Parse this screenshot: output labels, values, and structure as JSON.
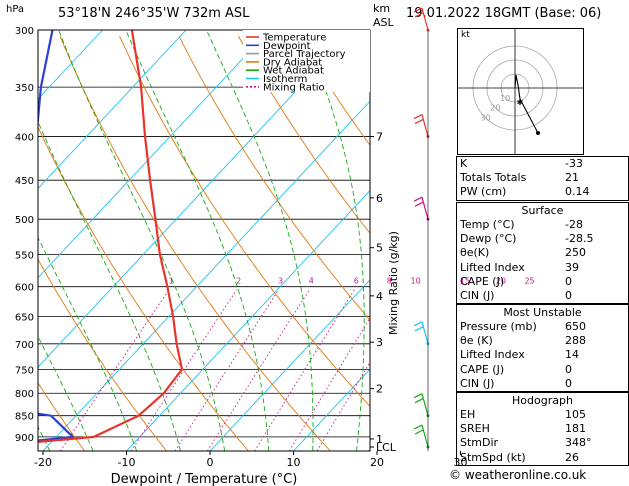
{
  "header": {
    "station": "53°18'N  246°35'W  732m  ASL",
    "datetime": "19.01.2022  18GMT  (Base: 06)",
    "hpa_label": "hPa",
    "km_label": "km",
    "asl_label": "ASL"
  },
  "colors": {
    "temperature": "#e8342c",
    "dewpoint": "#2d3fd8",
    "parcel": "#9a9a9a",
    "dry_adiabat": "#e07a10",
    "wet_adiabat": "#19a819",
    "isotherm": "#1ec4ee",
    "mixing_ratio": "#c71585"
  },
  "chart_data": {
    "type": "line",
    "title": "",
    "xlabel": "Dewpoint / Temperature (°C)",
    "ylabel": "hPa",
    "right_axis_label": "Mixing Ratio (g/kg)",
    "xlim": [
      -40,
      35
    ],
    "ylim": [
      925,
      300
    ],
    "x_ticks": [
      -40,
      -30,
      -20,
      -10,
      0,
      10,
      20,
      30
    ],
    "pressure_ticks": [
      300,
      350,
      400,
      450,
      500,
      550,
      600,
      650,
      700,
      750,
      800,
      850,
      900
    ],
    "km_ticks": [
      {
        "label": "7",
        "p": 400
      },
      {
        "label": "6",
        "p": 472
      },
      {
        "label": "5",
        "p": 540
      },
      {
        "label": "4",
        "p": 615
      },
      {
        "label": "3",
        "p": 697
      },
      {
        "label": "2",
        "p": 790
      },
      {
        "label": "1",
        "p": 905
      },
      {
        "label": "LCL",
        "p": 925
      }
    ],
    "mixing_ratio_labels": [
      "1",
      "2",
      "3",
      "4",
      "6",
      "8",
      "10",
      "15",
      "20",
      "25"
    ],
    "legend": [
      "Temperature",
      "Dewpoint",
      "Parcel Trajectory",
      "Dry Adiabat",
      "Wet Adiabat",
      "Isotherm",
      "Mixing Ratio"
    ],
    "legend_position": "top",
    "series": [
      {
        "name": "Temperature",
        "points": [
          {
            "p": 925,
            "t": -28
          },
          {
            "p": 900,
            "t": -15.5
          },
          {
            "p": 850,
            "t": -12.5
          },
          {
            "p": 800,
            "t": -12
          },
          {
            "p": 750,
            "t": -12.5
          },
          {
            "p": 700,
            "t": -16
          },
          {
            "p": 650,
            "t": -19.5
          },
          {
            "p": 600,
            "t": -23.5
          },
          {
            "p": 550,
            "t": -28
          },
          {
            "p": 500,
            "t": -32.5
          },
          {
            "p": 450,
            "t": -37.5
          },
          {
            "p": 400,
            "t": -43
          },
          {
            "p": 350,
            "t": -49
          },
          {
            "p": 300,
            "t": -56.5
          }
        ]
      },
      {
        "name": "Dewpoint",
        "points": [
          {
            "p": 925,
            "t": -28.5
          },
          {
            "p": 900,
            "t": -18
          },
          {
            "p": 850,
            "t": -23
          },
          {
            "p": 800,
            "t": -43
          },
          {
            "p": 750,
            "t": -48
          },
          {
            "p": 700,
            "t": -48
          },
          {
            "p": 650,
            "t": -48.5
          },
          {
            "p": 600,
            "t": -49
          },
          {
            "p": 550,
            "t": -53
          },
          {
            "p": 500,
            "t": -51
          },
          {
            "p": 450,
            "t": -52
          },
          {
            "p": 400,
            "t": -56
          },
          {
            "p": 350,
            "t": -61
          },
          {
            "p": 300,
            "t": -66
          }
        ]
      },
      {
        "name": "Parcel Trajectory",
        "points": [
          {
            "p": 925,
            "t": -28
          },
          {
            "p": 850,
            "t": -34
          },
          {
            "p": 800,
            "t": -38.5
          },
          {
            "p": 750,
            "t": -43
          },
          {
            "p": 700,
            "t": -48
          },
          {
            "p": 650,
            "t": -53
          }
        ]
      }
    ]
  },
  "hodograph": {
    "label": "kt",
    "ring_labels": [
      "10",
      "20",
      "30"
    ]
  },
  "indices": {
    "k": {
      "label": "K",
      "value": "-33"
    },
    "tt": {
      "label": "Totals Totals",
      "value": "21"
    },
    "pw": {
      "label": "PW (cm)",
      "value": "0.14"
    }
  },
  "surface": {
    "title": "Surface",
    "rows": [
      {
        "label": "Temp (°C)",
        "value": "-28"
      },
      {
        "label": "Dewp (°C)",
        "value": "-28.5"
      },
      {
        "label": "θe(K)",
        "value": "250"
      },
      {
        "label": "Lifted Index",
        "value": "39"
      },
      {
        "label": "CAPE (J)",
        "value": "0"
      },
      {
        "label": "CIN (J)",
        "value": "0"
      }
    ]
  },
  "most_unstable": {
    "title": "Most Unstable",
    "rows": [
      {
        "label": "Pressure (mb)",
        "value": "650"
      },
      {
        "label": "θe (K)",
        "value": "288"
      },
      {
        "label": "Lifted Index",
        "value": "14"
      },
      {
        "label": "CAPE (J)",
        "value": "0"
      },
      {
        "label": "CIN (J)",
        "value": "0"
      }
    ]
  },
  "hodograph_table": {
    "title": "Hodograph",
    "rows": [
      {
        "label": "EH",
        "value": "105"
      },
      {
        "label": "SREH",
        "value": "181"
      },
      {
        "label": "StmDir",
        "value": "348°"
      },
      {
        "label": "StmSpd (kt)",
        "value": "26"
      }
    ]
  },
  "credit": "© weatheronline.co.uk"
}
